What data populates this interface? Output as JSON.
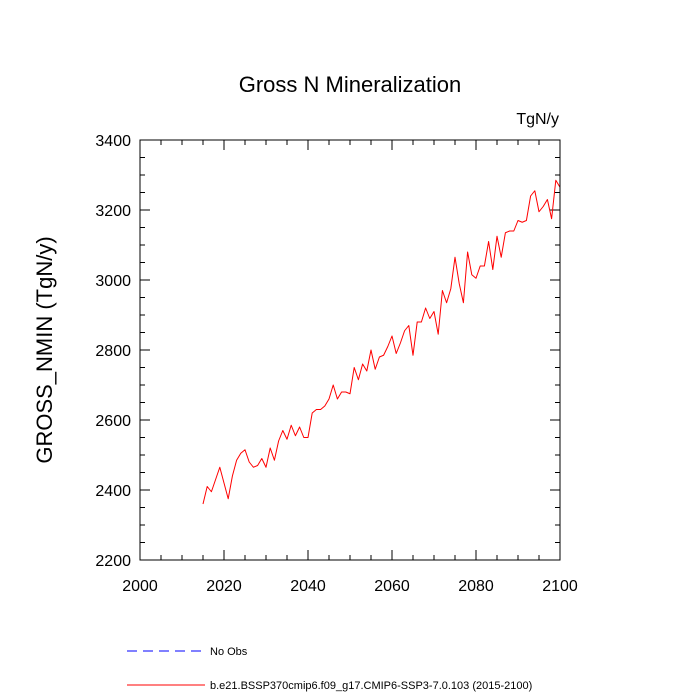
{
  "chart_data": {
    "type": "line",
    "title": "Gross N Mineralization",
    "units_label": "TgN/y",
    "ylabel": "GROSS_NMIN  (TgN/y)",
    "xlabel": "",
    "xlim": [
      2000,
      2100
    ],
    "ylim": [
      2200,
      3400
    ],
    "x_ticks": [
      2000,
      2020,
      2040,
      2060,
      2080,
      2100
    ],
    "y_ticks": [
      2200,
      2400,
      2600,
      2800,
      3000,
      3200,
      3400
    ],
    "x_minor_step": 5,
    "y_minor_step": 50,
    "grid": false,
    "legend_position": "bottom",
    "legend": [
      {
        "label": "No Obs",
        "color": "#0000ff",
        "style": "dashed"
      },
      {
        "label": "b.e21.BSSP370cmip6.f09_g17.CMIP6-SSP3-7.0.103 (2015-2100)",
        "color": "#ff0000",
        "style": "solid"
      }
    ],
    "series": [
      {
        "name": "b.e21.BSSP370cmip6.f09_g17.CMIP6-SSP3-7.0.103 (2015-2100)",
        "color": "#ff0000",
        "x": [
          2015,
          2016,
          2017,
          2018,
          2019,
          2020,
          2021,
          2022,
          2023,
          2024,
          2025,
          2026,
          2027,
          2028,
          2029,
          2030,
          2031,
          2032,
          2033,
          2034,
          2035,
          2036,
          2037,
          2038,
          2039,
          2040,
          2041,
          2042,
          2043,
          2044,
          2045,
          2046,
          2047,
          2048,
          2049,
          2050,
          2051,
          2052,
          2053,
          2054,
          2055,
          2056,
          2057,
          2058,
          2059,
          2060,
          2061,
          2062,
          2063,
          2064,
          2065,
          2066,
          2067,
          2068,
          2069,
          2070,
          2071,
          2072,
          2073,
          2074,
          2075,
          2076,
          2077,
          2078,
          2079,
          2080,
          2081,
          2082,
          2083,
          2084,
          2085,
          2086,
          2087,
          2088,
          2089,
          2090,
          2091,
          2092,
          2093,
          2094,
          2095,
          2096,
          2097,
          2098,
          2099,
          2100
        ],
        "y": [
          2360,
          2410,
          2395,
          2430,
          2465,
          2420,
          2375,
          2440,
          2485,
          2505,
          2515,
          2480,
          2465,
          2470,
          2490,
          2465,
          2520,
          2485,
          2540,
          2570,
          2545,
          2585,
          2555,
          2580,
          2550,
          2550,
          2620,
          2630,
          2630,
          2640,
          2660,
          2700,
          2660,
          2680,
          2680,
          2675,
          2750,
          2715,
          2760,
          2740,
          2800,
          2745,
          2780,
          2785,
          2810,
          2840,
          2790,
          2820,
          2855,
          2870,
          2785,
          2880,
          2880,
          2920,
          2890,
          2910,
          2845,
          2970,
          2935,
          2975,
          3065,
          2990,
          2935,
          3080,
          3015,
          3005,
          3040,
          3040,
          3110,
          3030,
          3125,
          3065,
          3135,
          3140,
          3140,
          3170,
          3165,
          3170,
          3240,
          3255,
          3195,
          3210,
          3230,
          3175,
          3285,
          3265
        ]
      }
    ]
  }
}
